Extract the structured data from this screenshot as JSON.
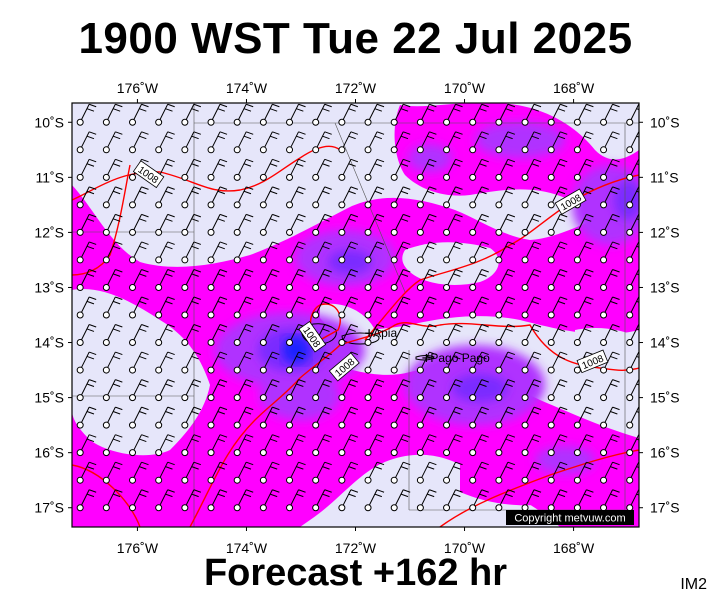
{
  "title": "1900 WST Tue 22 Jul 2025",
  "forecast": "Forecast +162 hr",
  "panel_id": "IM2",
  "copyright": "Copyright metvuw.com",
  "colors": {
    "ocean_background": "#e6e6fa",
    "precip_light": "#ff00ff",
    "precip_moderate": "#b030ff",
    "precip_heavy": "#7a2cff",
    "precip_very_heavy": "#1e22ff",
    "isobar": "#ff0000",
    "coastline": "#000000"
  },
  "map": {
    "lon_range": [
      -177.2,
      -166.8
    ],
    "lat_range": [
      -17.35,
      -9.65
    ],
    "lon_ticks": [
      {
        "value": -176,
        "label": "176˚W"
      },
      {
        "value": -174,
        "label": "174˚W"
      },
      {
        "value": -172,
        "label": "172˚W"
      },
      {
        "value": -170,
        "label": "170˚W"
      },
      {
        "value": -168,
        "label": "168˚W"
      }
    ],
    "lat_ticks": [
      {
        "value": -10,
        "label": "10˚S"
      },
      {
        "value": -11,
        "label": "11˚S"
      },
      {
        "value": -12,
        "label": "12˚S"
      },
      {
        "value": -13,
        "label": "13˚S"
      },
      {
        "value": -14,
        "label": "14˚S"
      },
      {
        "value": -15,
        "label": "15˚S"
      },
      {
        "value": -16,
        "label": "16˚S"
      },
      {
        "value": -17,
        "label": "17˚S"
      }
    ],
    "places": [
      {
        "name": "Apia",
        "lon": -171.75,
        "lat": -13.83
      },
      {
        "name": "Pago Pago",
        "lon": -170.7,
        "lat": -14.28
      }
    ],
    "isobar_labels": [
      {
        "text": "1008",
        "lon": -175.8,
        "lat": -10.95,
        "angle": 35
      },
      {
        "text": "1008",
        "lon": -172.8,
        "lat": -13.9,
        "angle": 55
      },
      {
        "text": "1008",
        "lon": -172.2,
        "lat": -14.45,
        "angle": -40
      },
      {
        "text": "1008",
        "lon": -168.05,
        "lat": -11.45,
        "angle": -30
      },
      {
        "text": "1008",
        "lon": -167.65,
        "lat": -14.35,
        "angle": -22
      }
    ],
    "wind_barbs": {
      "lon_start": -177.05,
      "lon_step": 0.48,
      "lat_start": -10.0,
      "lat_step": 0.5,
      "barbs_per_symbol": 2,
      "direction": "south-easterly trade winds"
    }
  }
}
